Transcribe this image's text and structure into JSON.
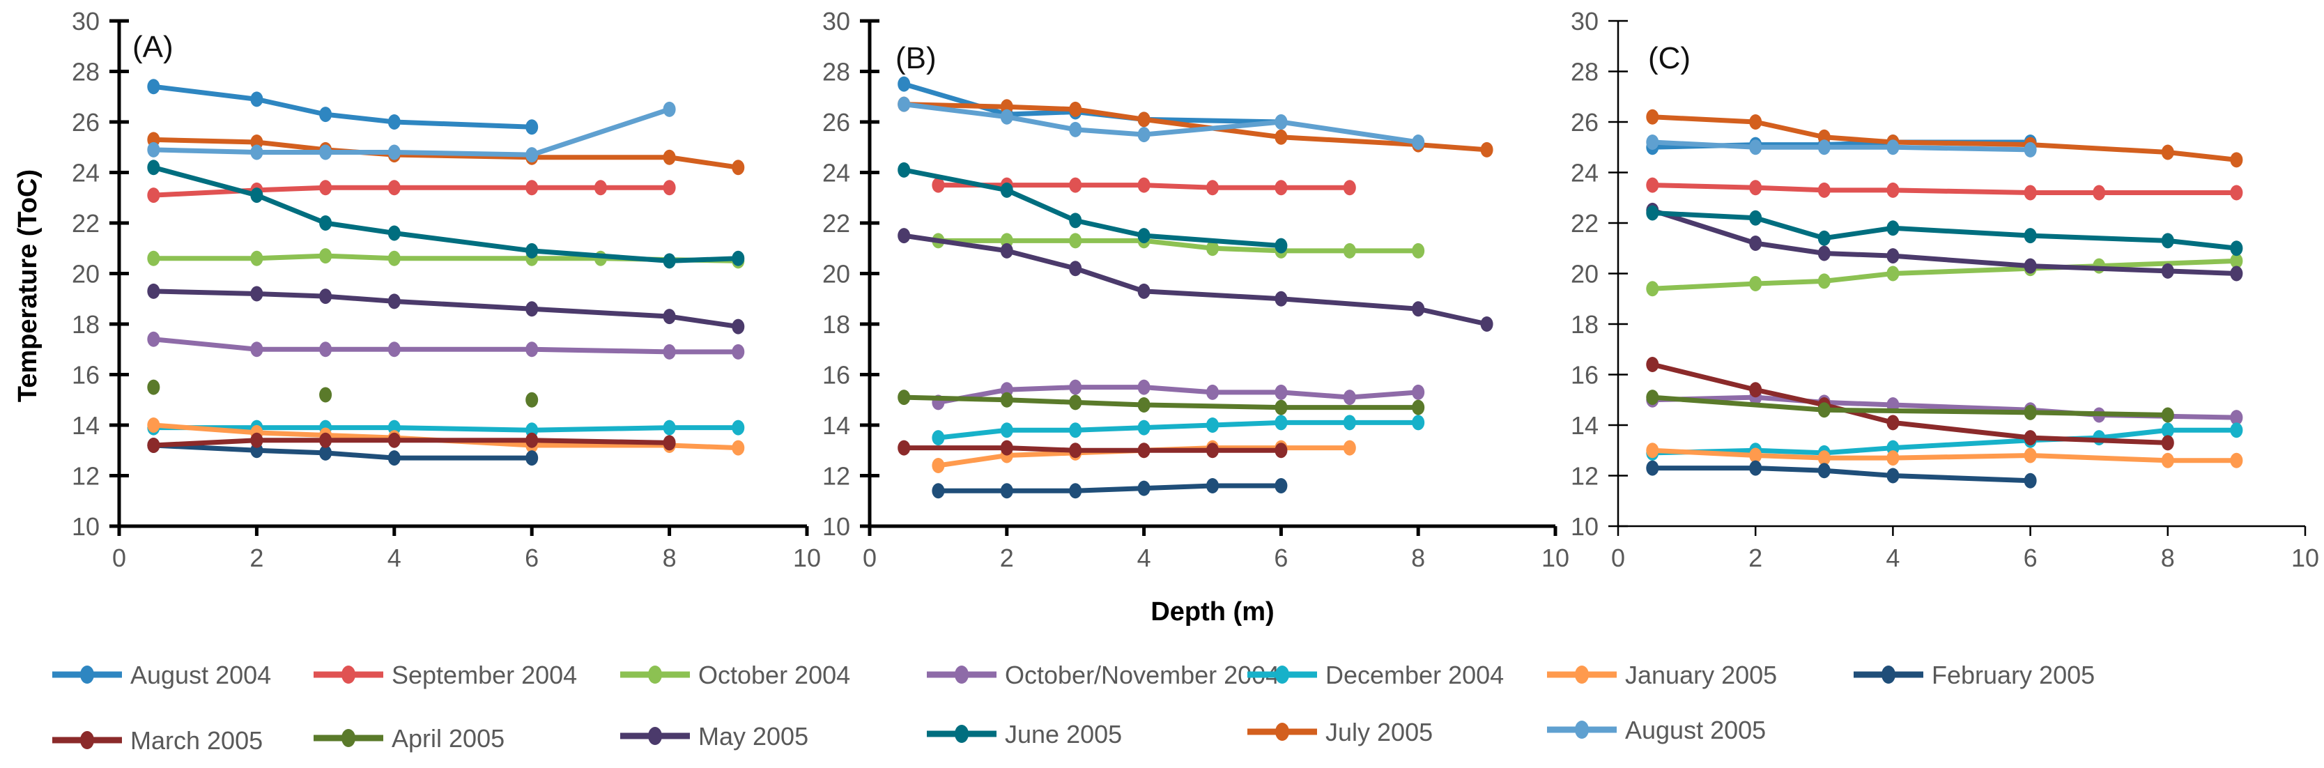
{
  "chart_data": {
    "type": "line",
    "xlabel": "Depth (m)",
    "ylabel": "Temperature (ToC)",
    "xlim": [
      0,
      10
    ],
    "ylim": [
      10,
      30
    ],
    "xticks": [
      0,
      2,
      4,
      6,
      8,
      10
    ],
    "yticks": [
      10,
      12,
      14,
      16,
      18,
      20,
      22,
      24,
      26,
      28,
      30
    ],
    "grid": false,
    "legend_placement": "bottom",
    "legend": [
      "August 2004",
      "September 2004",
      "October 2004",
      "October/November 2004",
      "December 2004",
      "January 2005",
      "February 2005",
      "March 2005",
      "April 2005",
      "May 2005",
      "June 2005",
      "July 2005",
      "August 2005"
    ],
    "colors": {
      "August 2004": "#2e86c1",
      "September 2004": "#e05252",
      "October 2004": "#8cc152",
      "October/November 2004": "#8e6ba8",
      "December 2004": "#17b1c9",
      "January 2005": "#ff9a4d",
      "February 2005": "#1f4e79",
      "March 2005": "#8b2a2a",
      "April 2005": "#5a7a2a",
      "May 2005": "#4b3a6b",
      "June 2005": "#006e7f",
      "July 2005": "#d35f1e",
      "August 2005": "#5fa0d0"
    },
    "panels": [
      {
        "label": "(A)",
        "series": [
          {
            "name": "August 2004",
            "x": [
              0.5,
              2,
              3,
              4,
              6
            ],
            "y": [
              27.4,
              26.9,
              26.3,
              26.0,
              25.8
            ]
          },
          {
            "name": "September 2004",
            "x": [
              0.5,
              2,
              3,
              4,
              6,
              7,
              8
            ],
            "y": [
              23.1,
              23.3,
              23.4,
              23.4,
              23.4,
              23.4,
              23.4
            ]
          },
          {
            "name": "October 2004",
            "x": [
              0.5,
              2,
              3,
              4,
              6,
              7,
              9
            ],
            "y": [
              20.6,
              20.6,
              20.7,
              20.6,
              20.6,
              20.6,
              20.5
            ]
          },
          {
            "name": "October/November 2004",
            "x": [
              0.5,
              2,
              3,
              4,
              6,
              8,
              9
            ],
            "y": [
              17.4,
              17.0,
              17.0,
              17.0,
              17.0,
              16.9,
              16.9
            ]
          },
          {
            "name": "December 2004",
            "x": [
              0.5,
              2,
              3,
              4,
              6,
              8,
              9
            ],
            "y": [
              13.9,
              13.9,
              13.9,
              13.9,
              13.8,
              13.9,
              13.9
            ]
          },
          {
            "name": "January 2005",
            "x": [
              0.5,
              2,
              3,
              4,
              6,
              8,
              9
            ],
            "y": [
              14.0,
              13.7,
              13.6,
              13.5,
              13.2,
              13.2,
              13.1
            ]
          },
          {
            "name": "February 2005",
            "x": [
              0.5,
              2,
              3,
              4,
              6
            ],
            "y": [
              13.2,
              13.0,
              12.9,
              12.7,
              12.7
            ]
          },
          {
            "name": "March 2005",
            "x": [
              0.5,
              2,
              3,
              4,
              6,
              8
            ],
            "y": [
              13.2,
              13.4,
              13.4,
              13.4,
              13.4,
              13.3
            ]
          },
          {
            "name": "April 2005",
            "x": [
              0.5,
              3,
              6
            ],
            "y": [
              15.5,
              15.2,
              15.0
            ],
            "line": false
          },
          {
            "name": "May 2005",
            "x": [
              0.5,
              2,
              3,
              4,
              6,
              8,
              9
            ],
            "y": [
              19.3,
              19.2,
              19.1,
              18.9,
              18.6,
              18.3,
              17.9
            ]
          },
          {
            "name": "June 2005",
            "x": [
              0.5,
              2,
              3,
              4,
              6,
              8,
              9
            ],
            "y": [
              24.2,
              23.1,
              22.0,
              21.6,
              20.9,
              20.5,
              20.6
            ]
          },
          {
            "name": "July 2005",
            "x": [
              0.5,
              2,
              3,
              4,
              6,
              8,
              9
            ],
            "y": [
              25.3,
              25.2,
              24.9,
              24.7,
              24.6,
              24.6,
              24.2
            ]
          },
          {
            "name": "August 2005",
            "x": [
              0.5,
              2,
              3,
              4,
              6,
              8
            ],
            "y": [
              24.9,
              24.8,
              24.8,
              24.8,
              24.7,
              26.5
            ]
          }
        ]
      },
      {
        "label": "(B)",
        "series": [
          {
            "name": "August 2004",
            "x": [
              0.5,
              2,
              3,
              4,
              6
            ],
            "y": [
              27.5,
              26.3,
              26.4,
              26.1,
              26.0
            ]
          },
          {
            "name": "September 2004",
            "x": [
              1,
              2,
              3,
              4,
              5,
              6,
              7
            ],
            "y": [
              23.5,
              23.5,
              23.5,
              23.5,
              23.4,
              23.4,
              23.4
            ]
          },
          {
            "name": "October 2004",
            "x": [
              1,
              2,
              3,
              4,
              5,
              6,
              7,
              8
            ],
            "y": [
              21.3,
              21.3,
              21.3,
              21.3,
              21.0,
              20.9,
              20.9,
              20.9
            ]
          },
          {
            "name": "October/November 2004",
            "x": [
              1,
              2,
              3,
              4,
              5,
              6,
              7,
              8
            ],
            "y": [
              14.9,
              15.4,
              15.5,
              15.5,
              15.3,
              15.3,
              15.1,
              15.3
            ]
          },
          {
            "name": "December 2004",
            "x": [
              1,
              2,
              3,
              4,
              5,
              6,
              7,
              8
            ],
            "y": [
              13.5,
              13.8,
              13.8,
              13.9,
              14.0,
              14.1,
              14.1,
              14.1
            ]
          },
          {
            "name": "January 2005",
            "x": [
              1,
              2,
              3,
              4,
              5,
              6,
              7
            ],
            "y": [
              12.4,
              12.8,
              12.9,
              13.0,
              13.1,
              13.1,
              13.1
            ]
          },
          {
            "name": "February 2005",
            "x": [
              1,
              2,
              3,
              4,
              5,
              6
            ],
            "y": [
              11.4,
              11.4,
              11.4,
              11.5,
              11.6,
              11.6
            ]
          },
          {
            "name": "March 2005",
            "x": [
              0.5,
              2,
              3,
              4,
              5,
              6
            ],
            "y": [
              13.1,
              13.1,
              13.0,
              13.0,
              13.0,
              13.0
            ]
          },
          {
            "name": "April 2005",
            "x": [
              0.5,
              2,
              3,
              4,
              6,
              8
            ],
            "y": [
              15.1,
              15.0,
              14.9,
              14.8,
              14.7,
              14.7
            ]
          },
          {
            "name": "May 2005",
            "x": [
              0.5,
              2,
              3,
              4,
              6,
              8,
              9
            ],
            "y": [
              21.5,
              20.9,
              20.2,
              19.3,
              19.0,
              18.6,
              18.0
            ]
          },
          {
            "name": "June 2005",
            "x": [
              0.5,
              2,
              3,
              4,
              6
            ],
            "y": [
              24.1,
              23.3,
              22.1,
              21.5,
              21.1
            ]
          },
          {
            "name": "July 2005",
            "x": [
              0.5,
              2,
              3,
              4,
              6,
              8,
              9
            ],
            "y": [
              26.7,
              26.6,
              26.5,
              26.1,
              25.4,
              25.1,
              24.9
            ]
          },
          {
            "name": "August 2005",
            "x": [
              0.5,
              2,
              3,
              4,
              6,
              8
            ],
            "y": [
              26.7,
              26.2,
              25.7,
              25.5,
              26.0,
              25.2
            ]
          }
        ]
      },
      {
        "label": "(C)",
        "series": [
          {
            "name": "August 2004",
            "x": [
              0.5,
              2,
              3,
              4,
              6
            ],
            "y": [
              25.0,
              25.1,
              25.1,
              25.2,
              25.2
            ]
          },
          {
            "name": "September 2004",
            "x": [
              0.5,
              2,
              3,
              4,
              6,
              7,
              9
            ],
            "y": [
              23.5,
              23.4,
              23.3,
              23.3,
              23.2,
              23.2,
              23.2
            ]
          },
          {
            "name": "October 2004",
            "x": [
              0.5,
              2,
              3,
              4,
              6,
              7,
              9
            ],
            "y": [
              19.4,
              19.6,
              19.7,
              20.0,
              20.2,
              20.3,
              20.5
            ]
          },
          {
            "name": "October/November 2004",
            "x": [
              0.5,
              2,
              3,
              4,
              6,
              7,
              9
            ],
            "y": [
              15.0,
              15.1,
              14.9,
              14.8,
              14.6,
              14.4,
              14.3
            ]
          },
          {
            "name": "December 2004",
            "x": [
              0.5,
              2,
              3,
              4,
              6,
              7,
              8,
              9
            ],
            "y": [
              12.9,
              13.0,
              12.9,
              13.1,
              13.4,
              13.5,
              13.8,
              13.8
            ]
          },
          {
            "name": "January 2005",
            "x": [
              0.5,
              2,
              3,
              4,
              6,
              8,
              9
            ],
            "y": [
              13.0,
              12.8,
              12.7,
              12.7,
              12.8,
              12.6,
              12.6
            ]
          },
          {
            "name": "February 2005",
            "x": [
              0.5,
              2,
              3,
              4,
              6
            ],
            "y": [
              12.3,
              12.3,
              12.2,
              12.0,
              11.8
            ]
          },
          {
            "name": "March 2005",
            "x": [
              0.5,
              2,
              3,
              4,
              6,
              8
            ],
            "y": [
              16.4,
              15.4,
              14.8,
              14.1,
              13.5,
              13.3
            ]
          },
          {
            "name": "April 2005",
            "x": [
              0.5,
              3,
              6,
              8
            ],
            "y": [
              15.1,
              14.6,
              14.5,
              14.4
            ]
          },
          {
            "name": "May 2005",
            "x": [
              0.5,
              2,
              3,
              4,
              6,
              8,
              9
            ],
            "y": [
              22.5,
              21.2,
              20.8,
              20.7,
              20.3,
              20.1,
              20.0
            ]
          },
          {
            "name": "June 2005",
            "x": [
              0.5,
              2,
              3,
              4,
              6,
              8,
              9
            ],
            "y": [
              22.4,
              22.2,
              21.4,
              21.8,
              21.5,
              21.3,
              21.0
            ]
          },
          {
            "name": "July 2005",
            "x": [
              0.5,
              2,
              3,
              4,
              6,
              8,
              9
            ],
            "y": [
              26.2,
              26.0,
              25.4,
              25.2,
              25.1,
              24.8,
              24.5
            ]
          },
          {
            "name": "August 2005",
            "x": [
              0.5,
              2,
              3,
              4,
              6
            ],
            "y": [
              25.2,
              25.0,
              25.0,
              25.0,
              24.9
            ]
          }
        ]
      }
    ]
  }
}
